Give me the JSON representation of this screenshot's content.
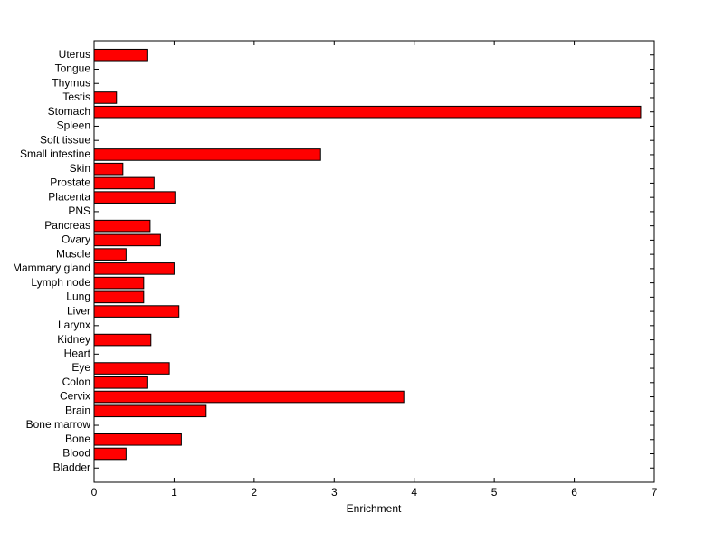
{
  "chart_data": {
    "type": "bar",
    "orientation": "horizontal",
    "xlabel": "Enrichment",
    "categories": [
      "Bladder",
      "Blood",
      "Bone",
      "Bone marrow",
      "Brain",
      "Cervix",
      "Colon",
      "Eye",
      "Heart",
      "Kidney",
      "Larynx",
      "Liver",
      "Lung",
      "Lymph node",
      "Mammary gland",
      "Muscle",
      "Ovary",
      "Pancreas",
      "PNS",
      "Placenta",
      "Prostate",
      "Skin",
      "Small intestine",
      "Soft tissue",
      "Spleen",
      "Stomach",
      "Testis",
      "Thymus",
      "Tongue",
      "Uterus"
    ],
    "values": [
      0,
      0.4,
      1.09,
      0,
      1.4,
      3.87,
      0.66,
      0.94,
      0,
      0.71,
      0,
      1.06,
      0.62,
      0.62,
      1.0,
      0.4,
      0.83,
      0.7,
      0,
      1.01,
      0.75,
      0.36,
      2.83,
      0,
      0,
      6.83,
      0.28,
      0,
      0,
      0.66
    ],
    "color": "#ff0000",
    "xlim": [
      0,
      7
    ],
    "xticks": [
      0,
      1,
      2,
      3,
      4,
      5,
      6,
      7
    ]
  }
}
